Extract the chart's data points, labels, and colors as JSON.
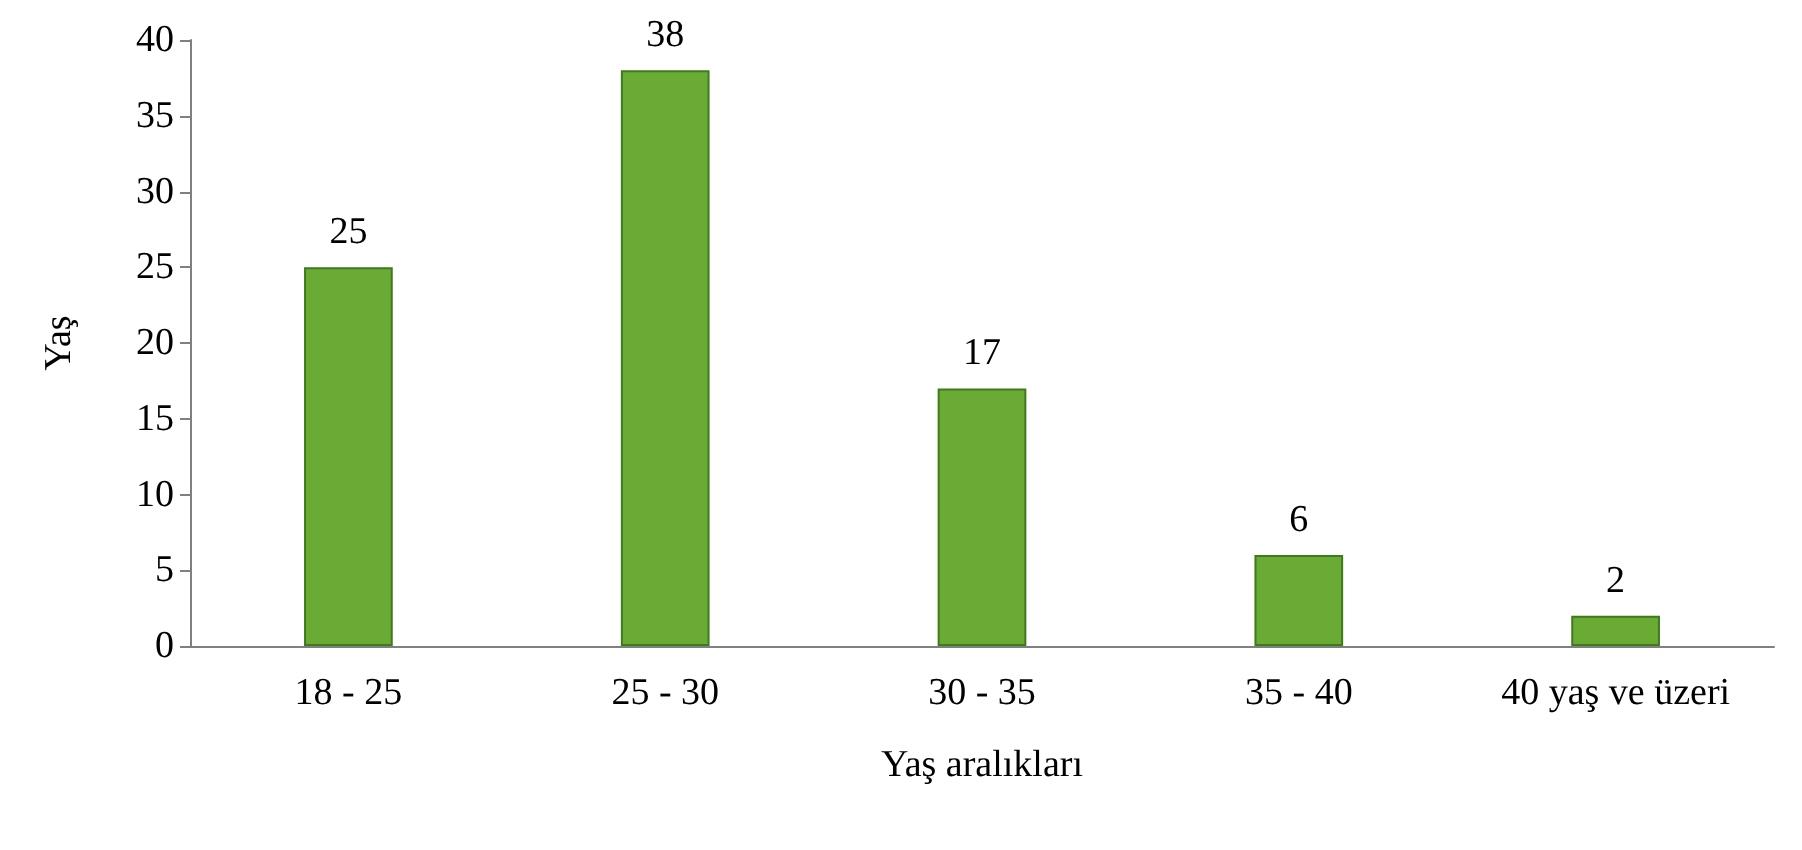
{
  "chart_data": {
    "type": "bar",
    "xlabel": "Yaş aralıkları",
    "ylabel": "Yaş",
    "categories": [
      "18 - 25",
      "25 - 30",
      "30 - 35",
      "35 - 40",
      "40 yaş ve üzeri"
    ],
    "values": [
      25,
      38,
      17,
      6,
      2
    ],
    "color": "#6aab35",
    "ylim": [
      0,
      40
    ],
    "yticks": [
      0,
      5,
      10,
      15,
      20,
      25,
      30,
      35,
      40
    ],
    "grid": false,
    "data_labels": true
  }
}
